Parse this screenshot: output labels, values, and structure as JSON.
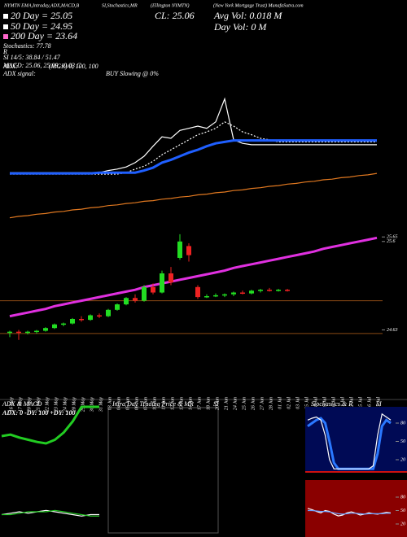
{
  "header": {
    "left": "NYMTN EMA,Intraday,ADX,MACD,B",
    "mid": "SI,Stochastics,MR",
    "ticker": "(Ellington NYMTN)",
    "right": "(New York Mortgage Trust) MunafaSutra.com"
  },
  "legend": [
    "20 Day = 25.05",
    "50 Day = 24.95",
    "200 Day = 23.64",
    "Stochastics: 77.78",
    "R",
    "SI 14/5: 38.84 / 51.47",
    "MACD: 25.06, 25.09, -0.03 C",
    "ADX:",
    "ADX signal:"
  ],
  "legend_colors": [
    "#ffffff",
    "#ffffff",
    "#ff66cc"
  ],
  "info": {
    "close": "CL: 25.06",
    "avg_vol": "Avg Vol: 0.018 M",
    "day_vol": "Day Vol: 0  M",
    "mgr": "(MGR) 0, 100, 100",
    "signal": "BUY Slowing @ 0%"
  },
  "panels": {
    "adx_title": "ADX & MACD",
    "adx_values": "ADX: 0  -DY: 100  +DY: 100",
    "intraday_title": "Intra Day Trading Price & MR",
    "intraday_si": "SI",
    "stoch_title": "Stochastics & R",
    "stoch_si": "SI"
  },
  "chart_data": [
    {
      "type": "line",
      "ylim": [
        23.5,
        26.0
      ],
      "series": [
        {
          "color": "#ffffff",
          "style": "solid",
          "values": [
            24.27,
            24.27,
            24.27,
            24.27,
            24.27,
            24.27,
            24.27,
            24.27,
            24.27,
            24.27,
            24.27,
            24.3,
            24.32,
            24.35,
            24.41,
            24.5,
            24.64,
            24.77,
            24.75,
            24.86,
            24.89,
            24.92,
            24.89,
            24.98,
            25.3,
            24.73,
            24.68,
            24.66,
            24.66,
            24.66,
            24.66,
            24.66,
            24.66,
            24.66,
            24.66,
            24.66,
            24.66,
            24.66,
            24.66,
            24.66,
            24.66,
            24.66
          ]
        },
        {
          "color": "#ffffff",
          "style": "dotted",
          "values": [
            24.25,
            24.25,
            24.25,
            24.25,
            24.25,
            24.25,
            24.25,
            24.25,
            24.25,
            24.25,
            24.25,
            24.25,
            24.25,
            24.27,
            24.32,
            24.36,
            24.43,
            24.52,
            24.59,
            24.66,
            24.73,
            24.8,
            24.84,
            24.89,
            24.98,
            24.92,
            24.84,
            24.8,
            24.75,
            24.73,
            24.7,
            24.7,
            24.7,
            24.7,
            24.7,
            24.7,
            24.7,
            24.7,
            24.7,
            24.7,
            24.7,
            24.7
          ]
        },
        {
          "color": "#1f5fff",
          "style": "thick",
          "values": [
            24.26,
            24.26,
            24.26,
            24.26,
            24.26,
            24.26,
            24.26,
            24.26,
            24.26,
            24.26,
            24.27,
            24.27,
            24.27,
            24.27,
            24.27,
            24.3,
            24.34,
            24.41,
            24.45,
            24.5,
            24.55,
            24.59,
            24.64,
            24.68,
            24.7,
            24.72,
            24.72,
            24.72,
            24.72,
            24.72,
            24.72,
            24.72,
            24.72,
            24.72,
            24.72,
            24.72,
            24.72,
            24.72,
            24.72,
            24.72,
            24.72,
            24.72
          ]
        },
        {
          "color": "#e07820",
          "style": "solid",
          "values": [
            23.64,
            23.66,
            23.67,
            23.69,
            23.7,
            23.72,
            23.73,
            23.75,
            23.76,
            23.78,
            23.79,
            23.81,
            23.82,
            23.84,
            23.85,
            23.87,
            23.88,
            23.9,
            23.91,
            23.93,
            23.94,
            23.96,
            23.97,
            23.99,
            24.0,
            24.02,
            24.03,
            24.05,
            24.06,
            24.08,
            24.09,
            24.11,
            24.12,
            24.14,
            24.15,
            24.17,
            24.18,
            24.2,
            24.21,
            24.23,
            24.24,
            24.26
          ]
        }
      ]
    },
    {
      "type": "candlestick",
      "ylim": [
        24.5,
        25.75
      ],
      "yticks": [
        25.65,
        25.6,
        24.63
      ],
      "categories": [
        "16 May",
        "17 May",
        "20 May",
        "21 May",
        "22 May",
        "23 May",
        "24 May",
        "28 May",
        "29 May",
        "30 May",
        "31 May",
        "03 Jun",
        "04 Jun",
        "05 Jun",
        "06 Jun",
        "07 Jun",
        "10 Jun",
        "11 Jun",
        "12 Jun",
        "13 Jun",
        "14 Jun",
        "17 Jun",
        "18 Jun",
        "20 Jun",
        "21 Jun",
        "24 Jun",
        "25 Jun",
        "26 Jun",
        "27 Jun",
        "28 Jun",
        "01 Jul",
        "02 Jul",
        "03 Jul",
        "05 Jul",
        "08 Jul",
        "09 Jul",
        "10 Jul",
        "11 Jul",
        "12 Jul",
        "15 Jul",
        "16 Jul",
        "17 Jul"
      ],
      "open": [
        24.6,
        24.61,
        24.6,
        24.61,
        24.62,
        24.65,
        24.69,
        24.7,
        24.75,
        24.74,
        24.79,
        24.78,
        24.85,
        24.91,
        24.98,
        24.95,
        25.1,
        25.04,
        25.25,
        25.42,
        25.55,
        25.1,
        24.99,
        25.0,
        25.01,
        25.02,
        25.04,
        25.03,
        25.06,
        25.07,
        25.06,
        25.07,
        null,
        null,
        null,
        null,
        null,
        null,
        null,
        null,
        null,
        null
      ],
      "high": [
        24.62,
        24.63,
        24.62,
        24.63,
        24.66,
        24.7,
        24.71,
        24.76,
        24.78,
        24.8,
        24.81,
        24.86,
        24.92,
        24.99,
        25.02,
        25.12,
        25.14,
        25.28,
        25.32,
        25.68,
        25.58,
        25.12,
        25.02,
        25.03,
        25.03,
        25.05,
        25.06,
        25.07,
        25.08,
        25.09,
        25.08,
        25.08,
        null,
        null,
        null,
        null,
        null,
        null,
        null,
        null,
        null,
        null
      ],
      "low": [
        24.55,
        24.52,
        24.58,
        24.59,
        24.61,
        24.64,
        24.67,
        24.69,
        24.72,
        24.73,
        24.76,
        24.77,
        24.84,
        24.9,
        24.93,
        24.94,
        25.02,
        25.03,
        25.12,
        25.4,
        25.38,
        24.97,
        24.98,
        24.99,
        24.99,
        25.0,
        25.02,
        25.02,
        25.04,
        25.05,
        25.05,
        25.05,
        null,
        null,
        null,
        null,
        null,
        null,
        null,
        null,
        null,
        null
      ],
      "close": [
        24.61,
        24.6,
        24.61,
        24.62,
        24.65,
        24.69,
        24.7,
        24.75,
        24.74,
        24.79,
        24.78,
        24.85,
        24.91,
        24.98,
        24.95,
        25.1,
        25.04,
        25.25,
        25.15,
        25.6,
        25.45,
        24.99,
        25.0,
        25.01,
        25.02,
        25.04,
        25.03,
        25.06,
        25.07,
        25.06,
        25.07,
        25.06,
        null,
        null,
        null,
        null,
        null,
        null,
        null,
        null,
        null,
        null
      ],
      "up_color": "#22dd22",
      "down_color": "#ee2222",
      "levels": [
        24.95,
        24.59
      ],
      "level_color": "#8a4a14",
      "series": [
        {
          "color": "#e030e0",
          "style": "thick",
          "values": [
            24.78,
            24.8,
            24.82,
            24.84,
            24.86,
            24.89,
            24.91,
            24.93,
            24.95,
            24.97,
            24.99,
            25.01,
            25.03,
            25.05,
            25.07,
            25.1,
            25.12,
            25.14,
            25.16,
            25.18,
            25.2,
            25.22,
            25.24,
            25.26,
            25.28,
            25.31,
            25.33,
            25.35,
            25.37,
            25.39,
            25.41,
            25.43,
            25.45,
            25.47,
            25.49,
            25.52,
            25.54,
            25.56,
            25.58,
            25.6,
            25.62,
            25.64
          ]
        }
      ]
    },
    {
      "type": "line",
      "ylim": [
        0,
        100
      ],
      "series": [
        {
          "color": "#22cc22",
          "style": "thick",
          "values": [
            60,
            62,
            58,
            55,
            52,
            50,
            55,
            65,
            80,
            100,
            100,
            100
          ]
        }
      ]
    },
    {
      "type": "line",
      "ylim": [
        -0.1,
        0.1
      ],
      "series": [
        {
          "color": "#ffffff",
          "style": "solid",
          "values": [
            0.0,
            0.01,
            0.02,
            0.01,
            0.02,
            0.03,
            0.02,
            0.01,
            0.0,
            -0.01,
            0.0,
            0.0
          ]
        },
        {
          "color": "#22cc22",
          "style": "solid",
          "values": [
            0.0,
            0.0,
            0.01,
            0.02,
            0.02,
            0.02,
            0.03,
            0.02,
            0.01,
            0.0,
            -0.01,
            -0.01
          ]
        }
      ]
    },
    {
      "type": "line",
      "ylim": [
        0,
        100
      ],
      "yticks": [
        80,
        50,
        20
      ],
      "background": "#000a55",
      "base_color": "#cc1111",
      "series": [
        {
          "color": "#2a78ff",
          "style": "thick",
          "values": [
            75,
            80,
            85,
            88,
            80,
            50,
            15,
            5,
            5,
            5,
            5,
            5,
            5,
            5,
            5,
            5,
            30,
            75,
            85,
            80
          ]
        },
        {
          "color": "#ffffff",
          "style": "solid",
          "values": [
            85,
            88,
            90,
            85,
            60,
            20,
            5,
            5,
            5,
            5,
            5,
            5,
            5,
            5,
            5,
            10,
            60,
            95,
            90,
            85
          ]
        }
      ]
    },
    {
      "type": "line",
      "ylim": [
        0,
        100
      ],
      "yticks": [
        80,
        50,
        20
      ],
      "background": "#8a0000",
      "series": [
        {
          "color": "#ffffff",
          "style": "solid",
          "values": [
            55,
            52,
            48,
            45,
            50,
            48,
            42,
            38,
            40,
            45,
            47,
            44,
            40,
            42,
            45,
            43,
            42,
            44,
            46,
            45
          ]
        },
        {
          "color": "#6aa0ff",
          "style": "solid",
          "values": [
            50,
            50,
            49,
            48,
            48,
            47,
            45,
            43,
            42,
            43,
            44,
            44,
            43,
            42,
            43,
            43,
            43,
            43,
            44,
            44
          ]
        }
      ]
    }
  ]
}
